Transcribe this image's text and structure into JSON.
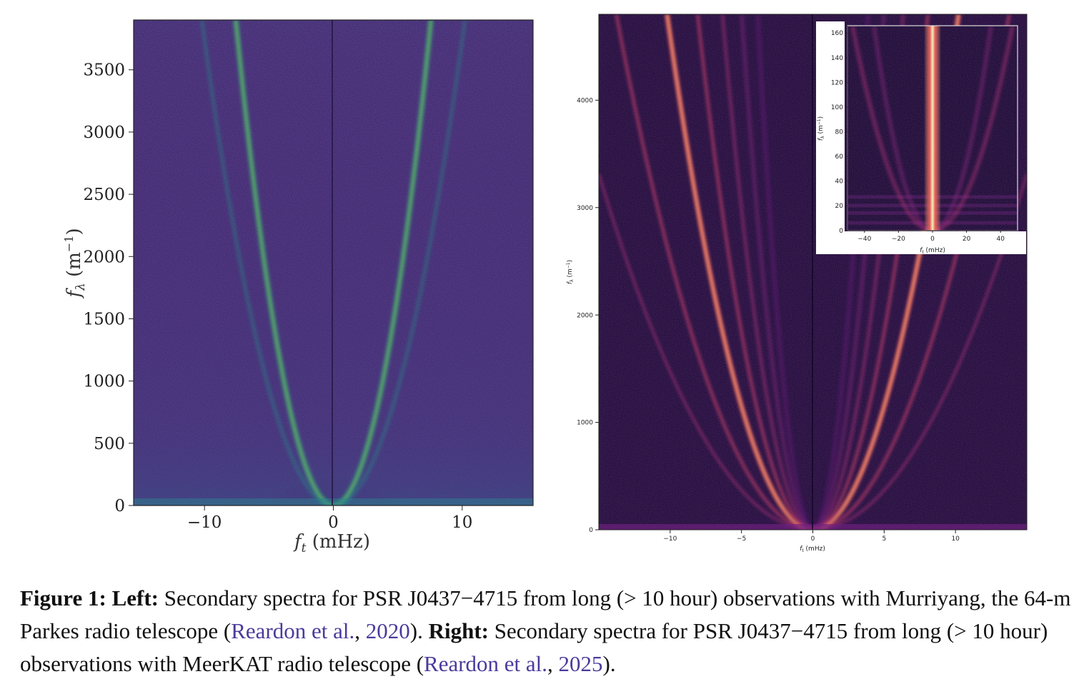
{
  "figure": {
    "left_panel": {
      "xlabel": "f_t (mHz)",
      "xlabel_main": "f",
      "xlabel_sub": "t",
      "xlabel_unit": " (mHz)",
      "ylabel_main": "f",
      "ylabel_sub": "λ",
      "ylabel_unit": " (m",
      "ylabel_exp": "−1",
      "ylabel_close": ")",
      "xticks": [
        "−10",
        "0",
        "10"
      ],
      "yticks": [
        "0",
        "500",
        "1000",
        "1500",
        "2000",
        "2500",
        "3000",
        "3500"
      ],
      "colormap": "viridis"
    },
    "right_panel": {
      "xlabel_main": "f",
      "xlabel_sub": "t",
      "xlabel_unit": " (mHz)",
      "ylabel_main": "f",
      "ylabel_sub": "λ",
      "ylabel_unit": " (m",
      "ylabel_exp": "−1",
      "ylabel_close": ")",
      "xticks": [
        "−10",
        "−5",
        "0",
        "5",
        "10"
      ],
      "yticks": [
        "0",
        "1000",
        "2000",
        "3000",
        "4000"
      ],
      "colormap": "magma",
      "inset": {
        "xticks": [
          "−40",
          "−20",
          "0",
          "20",
          "40"
        ],
        "yticks": [
          "0",
          "20",
          "40",
          "60",
          "80",
          "100",
          "120",
          "140",
          "160"
        ]
      }
    }
  },
  "chart_data": [
    {
      "type": "heatmap",
      "xlabel": "f_t (mHz)",
      "ylabel": "f_λ (m^−1)",
      "xlim": [
        -15.5,
        15.5
      ],
      "ylim": [
        0,
        3900
      ],
      "colormap": "viridis",
      "arc_curvature": 68
    },
    {
      "type": "heatmap",
      "xlabel": "f_t (mHz)",
      "ylabel": "f_λ (m^−1)",
      "xlim": [
        -15,
        15
      ],
      "ylim": [
        0,
        4800
      ],
      "colormap": "magma",
      "arc_curvature": 46
    },
    {
      "type": "heatmap",
      "xlabel": "f_t (mHz)",
      "ylabel": "f_λ (m^−1)",
      "xlim": [
        -50,
        50
      ],
      "ylim": [
        0,
        166
      ],
      "colormap": "magma"
    }
  ],
  "caption": {
    "fig_label": "Figure 1:",
    "left_label": "Left:",
    "part1": " Secondary spectra for PSR J0437−4715 from long (> 10 hour) observations with Murriyang, the 64-m Parkes radio telescope (",
    "cite1_authors": "Reardon et al.",
    "sep1": ", ",
    "cite1_year": "2020",
    "close1": "). ",
    "right_label": "Right:",
    "part2": " Secondary spectra for PSR J0437−4715 from long (> 10 hour) observations with MeerKAT radio telescope (",
    "cite2_authors": "Reardon et al.",
    "sep2": ", ",
    "cite2_year": "2025",
    "close2": ")."
  }
}
